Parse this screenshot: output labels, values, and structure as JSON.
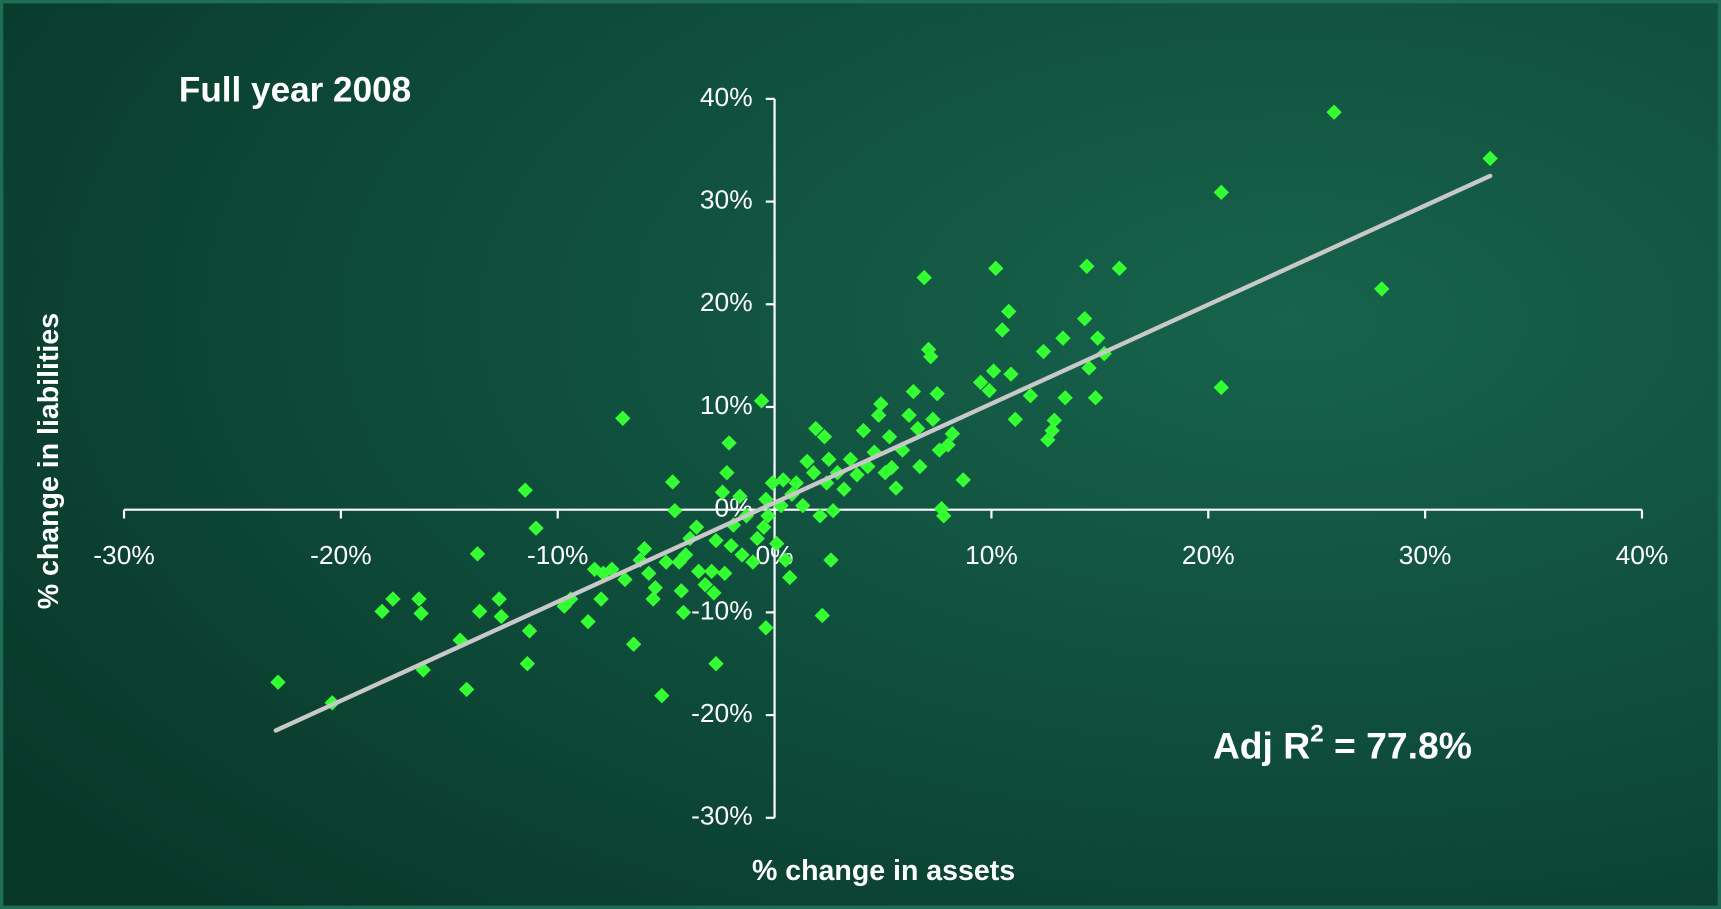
{
  "chart_data": {
    "type": "scatter",
    "title": "Full year 2008",
    "x_label": "% change in assets",
    "y_label": "% change in liabilities",
    "annotation": {
      "text": "Adj R",
      "superscript": "2",
      "rest": " = 77.8%"
    },
    "color": "#33ff33",
    "xlim": [
      -30,
      40
    ],
    "ylim": [
      -30,
      40
    ],
    "xticks": [
      {
        "value": -30,
        "label": "-30%"
      },
      {
        "value": -20,
        "label": "-20%"
      },
      {
        "value": -10,
        "label": "-10%"
      },
      {
        "value": 0,
        "label": "0%"
      },
      {
        "value": 10,
        "label": "10%"
      },
      {
        "value": 20,
        "label": "20%"
      },
      {
        "value": 30,
        "label": "30%"
      },
      {
        "value": 40,
        "label": "40%"
      }
    ],
    "yticks": [
      {
        "value": -30,
        "label": "-30%"
      },
      {
        "value": -20,
        "label": "-20%"
      },
      {
        "value": -10,
        "label": "-10%"
      },
      {
        "value": 0,
        "label": "0%"
      },
      {
        "value": 10,
        "label": "10%"
      },
      {
        "value": 20,
        "label": "20%"
      },
      {
        "value": 30,
        "label": "30%"
      },
      {
        "value": 40,
        "label": "40%"
      }
    ],
    "x": [
      -22.9,
      -20.4,
      -18.1,
      -17.6,
      -16.4,
      -16.3,
      -16.2,
      -14.5,
      -14.2,
      -13.7,
      -13.6,
      -12.7,
      -12.6,
      -11.5,
      -11.4,
      -11.3,
      -11.0,
      -9.7,
      -9.4,
      -8.6,
      -8.3,
      -8.0,
      -7.9,
      -7.5,
      -7.0,
      -6.9,
      -6.5,
      -6.2,
      -6.0,
      -5.8,
      -5.6,
      -5.5,
      -5.2,
      -5.0,
      -4.7,
      -4.6,
      -4.4,
      -4.3,
      -4.2,
      -4.1,
      -3.9,
      -3.6,
      -3.5,
      -3.2,
      -2.9,
      -2.7,
      -2.8,
      -2.7,
      -2.4,
      -2.3,
      -2.1,
      -2.2,
      -2.0,
      -1.9,
      -1.6,
      -1.5,
      -1.3,
      -1.0,
      -0.8,
      -0.6,
      -0.4,
      -0.5,
      -0.4,
      -0.3,
      -0.1,
      0.1,
      0.3,
      0.4,
      0.5,
      0.7,
      0.8,
      1.0,
      1.3,
      1.5,
      1.8,
      1.9,
      2.1,
      2.2,
      2.3,
      2.4,
      2.5,
      2.6,
      2.7,
      2.9,
      3.2,
      3.5,
      3.8,
      4.1,
      4.3,
      4.6,
      4.8,
      4.9,
      5.1,
      5.3,
      5.4,
      5.6,
      5.9,
      6.2,
      6.4,
      6.6,
      6.7,
      6.9,
      7.1,
      7.2,
      7.3,
      7.5,
      7.6,
      7.7,
      7.8,
      8.0,
      8.2,
      8.7,
      9.5,
      9.9,
      10.1,
      10.2,
      10.5,
      10.8,
      10.9,
      11.1,
      11.8,
      12.4,
      12.6,
      12.8,
      12.9,
      13.3,
      13.4,
      14.3,
      14.4,
      14.5,
      14.8,
      14.9,
      15.2,
      15.9,
      20.6,
      20.6,
      25.8,
      28.0,
      33.0
    ],
    "values": [
      -16.8,
      -18.8,
      -9.9,
      -8.7,
      -8.7,
      -10.1,
      -15.6,
      -12.7,
      -17.5,
      -4.3,
      -9.9,
      -8.7,
      -10.4,
      1.9,
      -15.0,
      -11.8,
      -1.8,
      -9.4,
      -8.7,
      -10.9,
      -5.8,
      -8.7,
      -6.2,
      -5.8,
      8.9,
      -6.8,
      -13.1,
      -4.9,
      -3.8,
      -6.2,
      -8.7,
      -7.6,
      -18.1,
      -5.1,
      2.7,
      -0.1,
      -5.1,
      -7.9,
      -10.0,
      -4.4,
      -2.8,
      -1.7,
      -6.0,
      -7.3,
      -6.0,
      -15.0,
      -8.1,
      -3.0,
      1.7,
      -6.2,
      6.5,
      3.6,
      -3.5,
      -1.5,
      1.3,
      -4.4,
      -0.6,
      -5.1,
      -2.8,
      10.6,
      -11.5,
      -1.7,
      1.0,
      -0.6,
      2.6,
      -3.3,
      0.4,
      2.9,
      -4.9,
      -6.6,
      1.5,
      2.6,
      0.4,
      4.7,
      3.6,
      7.9,
      -0.6,
      -10.3,
      7.1,
      2.6,
      4.9,
      -4.9,
      -0.1,
      3.6,
      2.0,
      4.9,
      3.4,
      7.7,
      4.2,
      5.6,
      9.2,
      10.3,
      3.6,
      7.1,
      4.1,
      2.1,
      5.8,
      9.2,
      11.5,
      7.9,
      4.2,
      22.6,
      15.6,
      14.9,
      8.8,
      11.3,
      5.8,
      0.1,
      -0.6,
      6.3,
      7.4,
      2.9,
      12.4,
      11.6,
      13.5,
      23.5,
      17.5,
      19.3,
      13.2,
      8.8,
      11.1,
      15.4,
      6.8,
      7.7,
      8.7,
      16.7,
      10.9,
      18.6,
      23.7,
      13.8,
      10.9,
      16.7,
      15.2,
      23.5,
      30.9,
      11.9,
      38.7,
      21.5,
      34.2
    ],
    "trendline": {
      "color": "#c8c8c8",
      "x": [
        -23,
        33
      ],
      "values": [
        -21.5,
        32.5
      ]
    }
  }
}
